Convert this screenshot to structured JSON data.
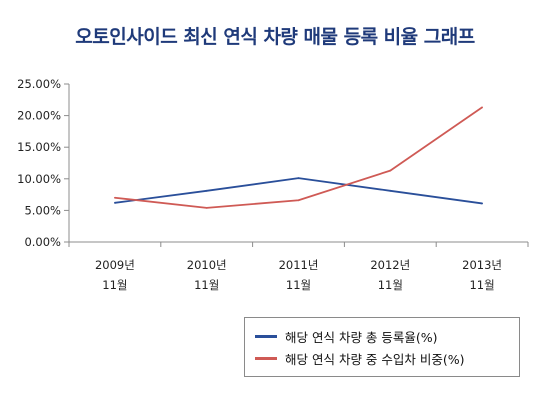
{
  "chart_data": {
    "type": "line",
    "title": "오토인사이드 최신 연식 차량 매물 등록 비율 그래프",
    "categories": [
      [
        "2009년",
        "11월"
      ],
      [
        "2010년",
        "11월"
      ],
      [
        "2011년",
        "11월"
      ],
      [
        "2012년",
        "11월"
      ],
      [
        "2013년",
        "11월"
      ]
    ],
    "ylim": [
      0,
      25
    ],
    "y_ticks": [
      0,
      5,
      10,
      15,
      20,
      25
    ],
    "y_tick_labels": [
      "0.00%",
      "5.00%",
      "10.00%",
      "15.00%",
      "20.00%",
      "25.00%"
    ],
    "grid": false,
    "legend_position": "bottom-right",
    "series": [
      {
        "name": "해당 연식 차량 총 등록율(%)",
        "color": "#2a4f9a",
        "values": [
          6.2,
          8.1,
          10.1,
          8.1,
          6.1
        ]
      },
      {
        "name": "해당 연식 차량 중 수입차 비중(%)",
        "color": "#cf5a55",
        "values": [
          7.0,
          5.4,
          6.6,
          11.3,
          21.3
        ]
      }
    ]
  }
}
